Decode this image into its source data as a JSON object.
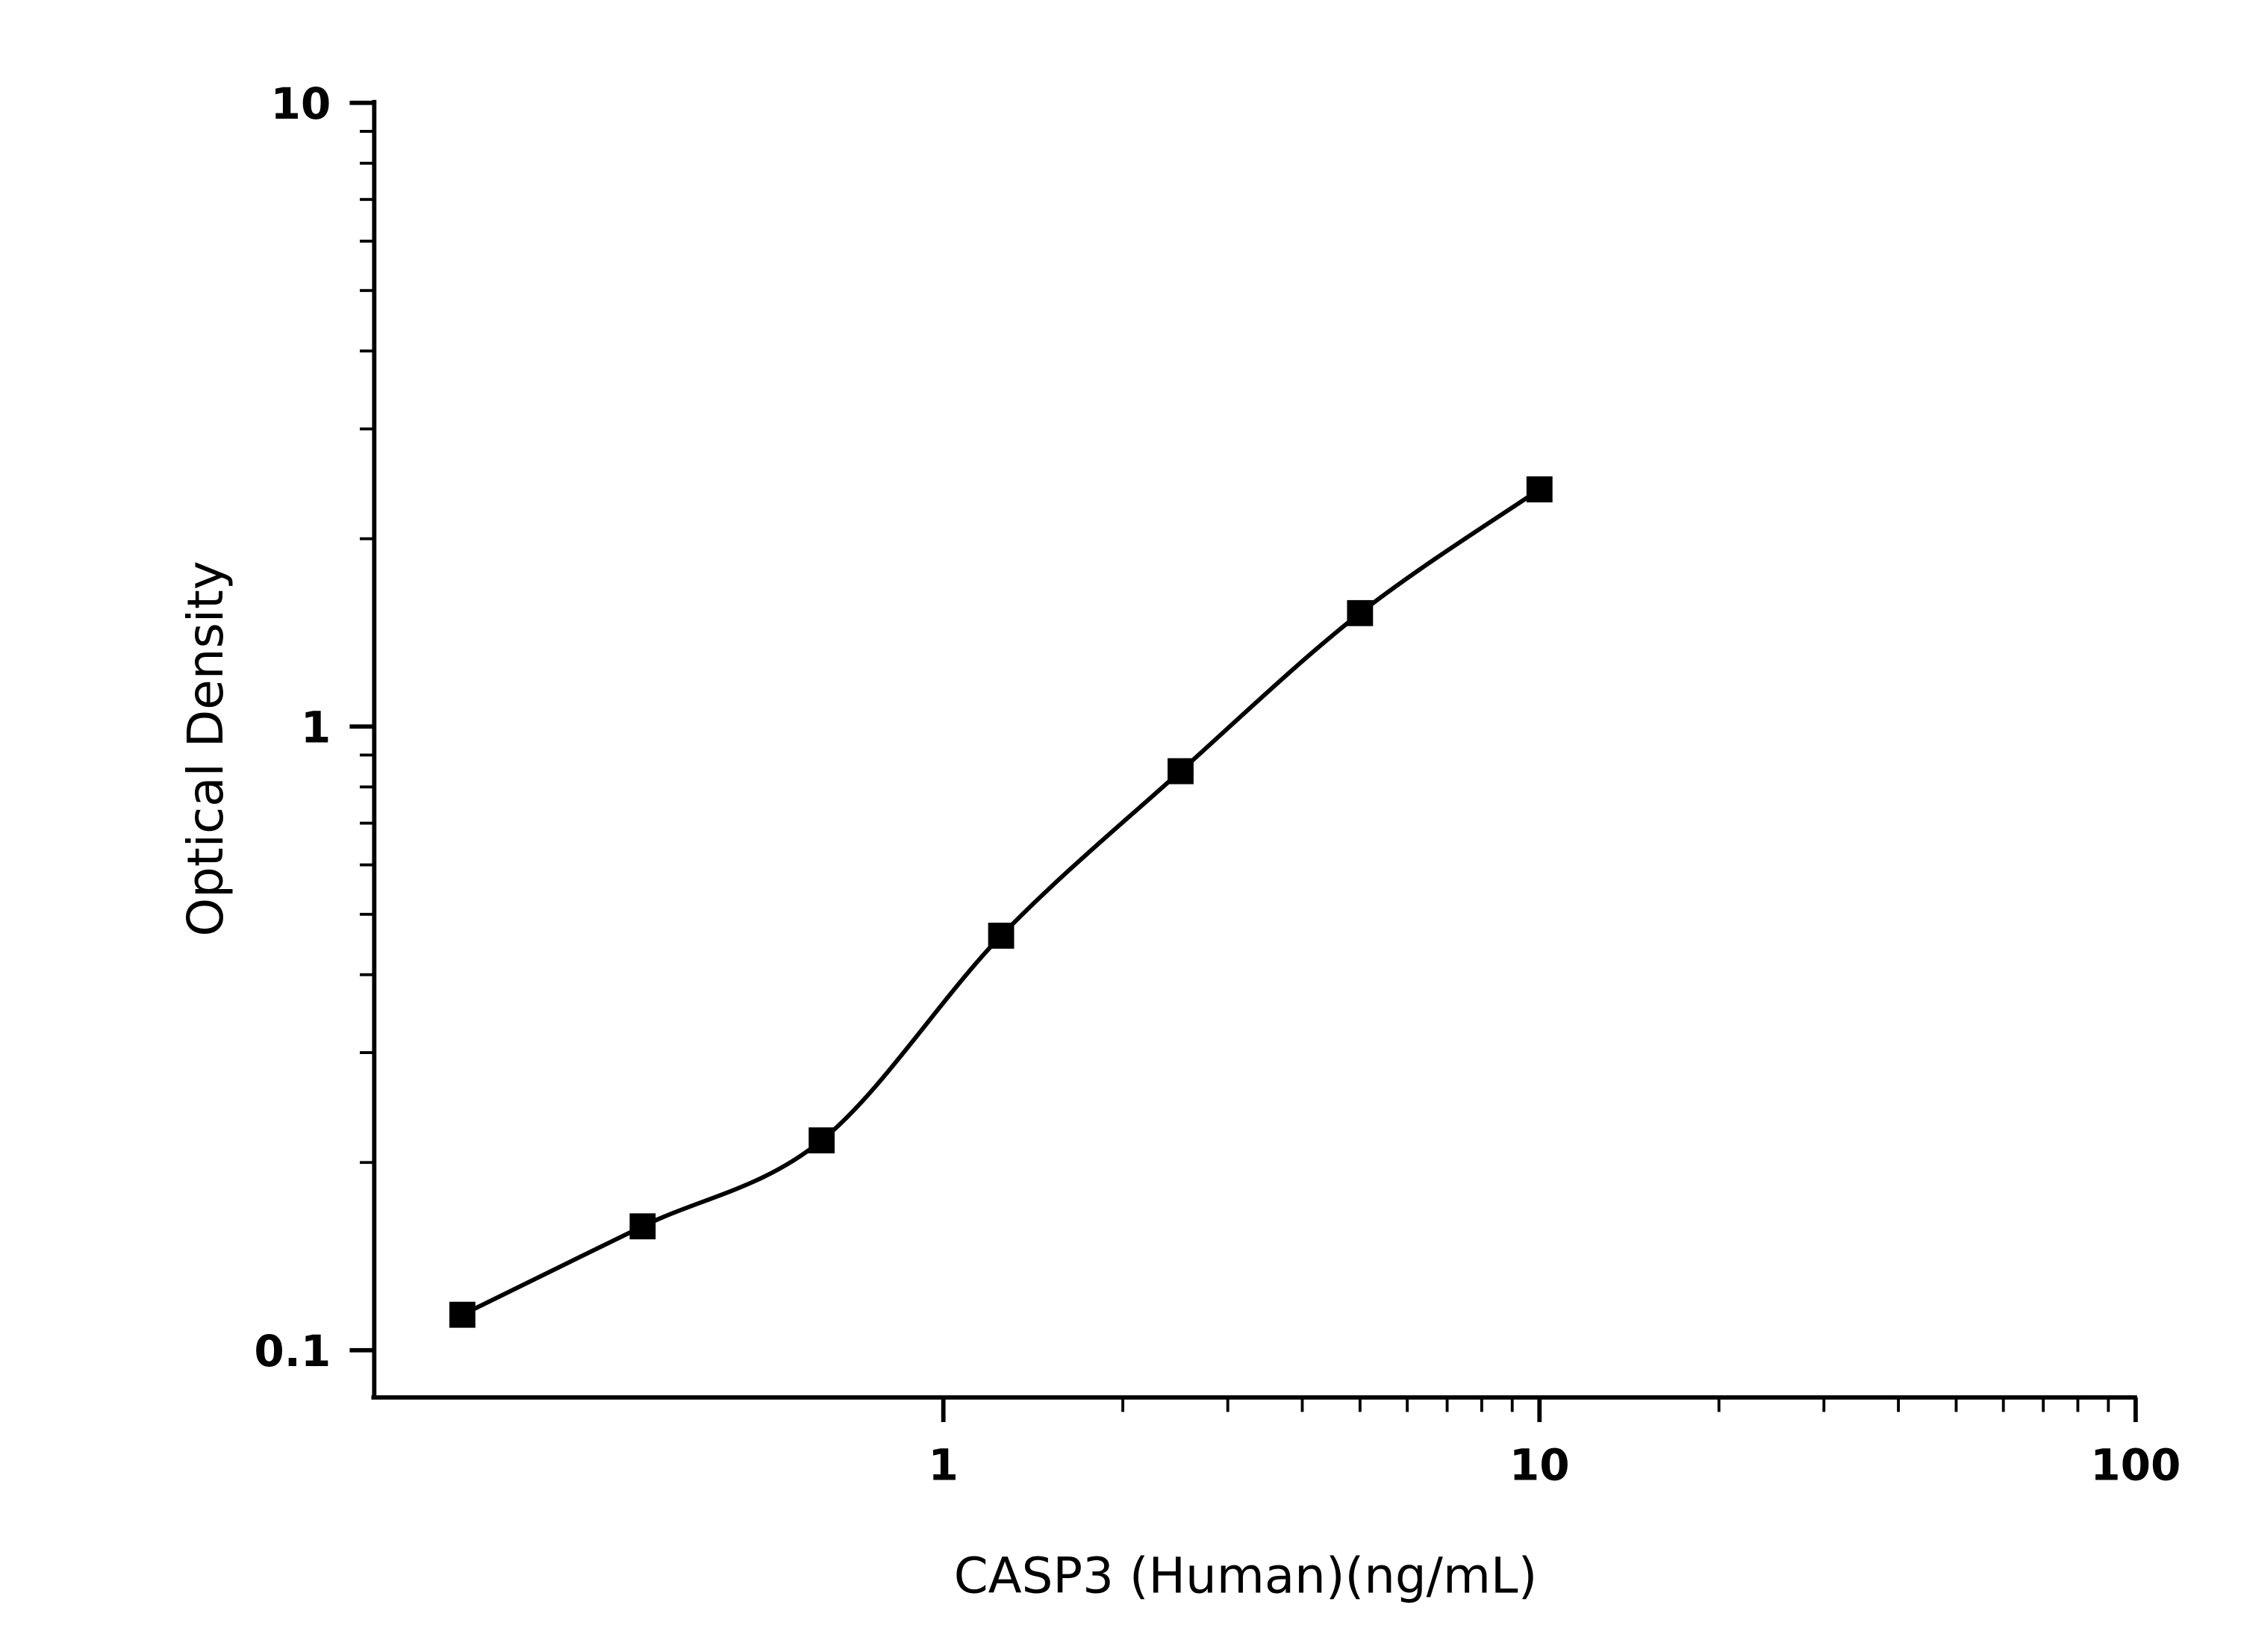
{
  "chart_data": {
    "type": "scatter",
    "title": "",
    "xlabel": "CASP3 (Human)(ng/mL)",
    "ylabel": "Optical Density",
    "x_scale": "log",
    "y_scale": "log",
    "xlim": [
      0.111,
      100
    ],
    "ylim": [
      0.084,
      10
    ],
    "grid": false,
    "legend": "none",
    "x_ticks": [
      {
        "value": 1,
        "label": "1"
      },
      {
        "value": 10,
        "label": "10"
      },
      {
        "value": 100,
        "label": "100"
      }
    ],
    "y_ticks": [
      {
        "value": 0.1,
        "label": "0.1"
      },
      {
        "value": 1,
        "label": "1"
      },
      {
        "value": 10,
        "label": "10"
      }
    ],
    "series": [
      {
        "marker": "square",
        "color": "#000000",
        "fit_line": "smooth curve",
        "x": [
          0.156,
          0.313,
          0.625,
          1.25,
          2.5,
          5,
          10
        ],
        "y": [
          0.114,
          0.158,
          0.217,
          0.462,
          0.848,
          1.52,
          2.4
        ]
      }
    ]
  }
}
